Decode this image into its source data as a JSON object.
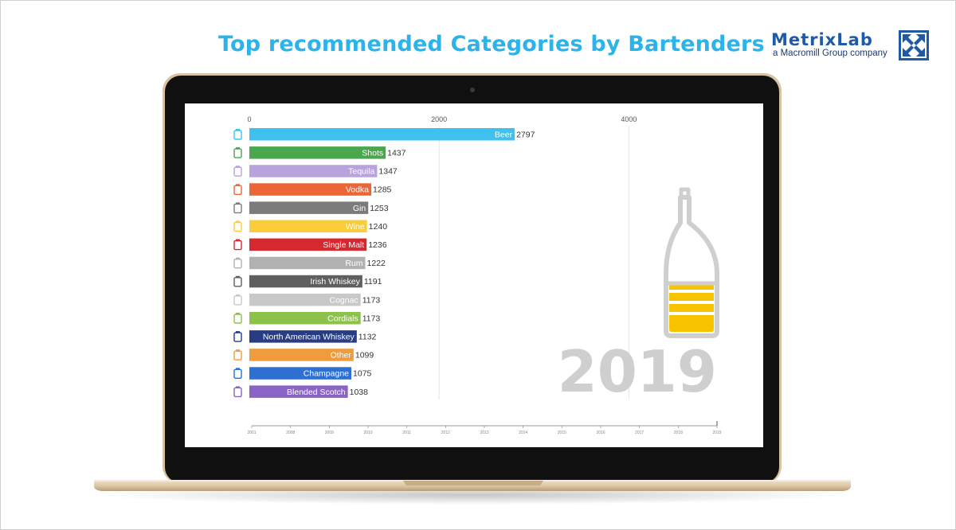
{
  "header": {
    "title": "Top recommended Categories by Bartenders"
  },
  "logo": {
    "name": "MetrixLab",
    "tagline": "a Macromill Group company",
    "icon": "metrixlab-arrows-icon",
    "color": "#1e5aa8"
  },
  "colors": {
    "title": "#2bb3ea",
    "bottle_fill": "#f7c300",
    "bottle_outline": "#cfcfcf",
    "year": "#cfcfcf",
    "gridline": "#e6e6e6"
  },
  "chart_data": {
    "type": "bar",
    "orientation": "horizontal",
    "year": "2019",
    "categories": [
      "Beer",
      "Shots",
      "Tequila",
      "Vodka",
      "Gin",
      "Wine",
      "Single Malt",
      "Rum",
      "Irish Whiskey",
      "Cognac",
      "Cordials",
      "North American Whiskey",
      "Other",
      "Champagne",
      "Blended Scotch"
    ],
    "values": [
      2797,
      1437,
      1347,
      1285,
      1253,
      1240,
      1236,
      1222,
      1191,
      1173,
      1173,
      1132,
      1099,
      1075,
      1038
    ],
    "colors": [
      "#3ec1ef",
      "#4aa74e",
      "#b9a3dd",
      "#ec6535",
      "#7b7b7b",
      "#fbcd3c",
      "#d6282f",
      "#b1b1b1",
      "#5f5f5f",
      "#c8c8c8",
      "#8cc14a",
      "#273c83",
      "#f09b3c",
      "#2e6fd1",
      "#8a63c6"
    ],
    "icons": [
      "beer-mug-icon",
      "shot-glass-icon",
      "tequila-glass-icon",
      "vodka-bottle-icon",
      "gin-bottle-icon",
      "wine-bottle-icon",
      "single-malt-bottles-icon",
      "rum-barrel-icon",
      "irish-whiskey-bottle-icon",
      "cognac-glass-icon",
      "cordials-bottle-icon",
      "north-american-whiskey-bottle-icon",
      "other-cocktail-glass-icon",
      "champagne-bottle-icon",
      "blended-scotch-bottles-icon"
    ],
    "xlim": [
      0,
      4400
    ],
    "xticks": [
      0,
      2000,
      4000
    ],
    "xtick_labels": [
      "0",
      "2000",
      "4000"
    ],
    "timeline_labels": [
      "2001",
      "2008",
      "2009",
      "2010",
      "2011",
      "2012",
      "2013",
      "2014",
      "2015",
      "2016",
      "2017",
      "2018",
      "2019"
    ],
    "timeline_progress": 1
  }
}
